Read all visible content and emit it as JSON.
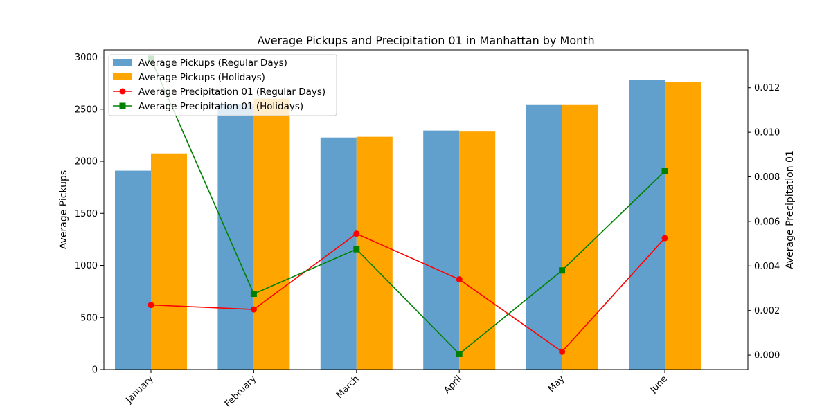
{
  "chart_data": {
    "type": "bar",
    "title": "Average Pickups and Precipitation 01 in Manhattan by Month",
    "xlabel": "",
    "ylabel": "Average Pickups",
    "y2label": "Average Precipitation 01",
    "categories": [
      "January",
      "February",
      "March",
      "April",
      "May",
      "June"
    ],
    "ylim": [
      0,
      3070
    ],
    "yticks": [
      0,
      500,
      1000,
      1500,
      2000,
      2500,
      3000
    ],
    "y2lim": [
      -0.00065,
      0.0137
    ],
    "y2ticks": [
      0.0,
      0.002,
      0.004,
      0.006,
      0.008,
      0.01,
      0.012
    ],
    "y2tick_labels": [
      "0.000",
      "0.002",
      "0.004",
      "0.006",
      "0.008",
      "0.010",
      "0.012"
    ],
    "legend_position": "top-left",
    "grid": false,
    "bar_series": [
      {
        "name": "Average Pickups (Regular Days)",
        "color": "#61a0cd",
        "values": [
          1910,
          2550,
          2228,
          2295,
          2540,
          2780
        ]
      },
      {
        "name": "Average Pickups (Holidays)",
        "color": "#ffa500",
        "values": [
          2075,
          2600,
          2235,
          2285,
          2540,
          2758
        ]
      }
    ],
    "line_series": [
      {
        "name": "Average Precipitation 01 (Regular Days)",
        "color": "#ff0000",
        "marker": "circle",
        "axis": "right",
        "values": [
          0.00225,
          0.00205,
          0.00545,
          0.0034,
          0.00015,
          0.00525
        ]
      },
      {
        "name": "Average Precipitation 01 (Holidays)",
        "color": "#008000",
        "marker": "square",
        "axis": "right",
        "values": [
          0.0133,
          0.00275,
          0.00475,
          5e-05,
          0.0038,
          0.00825
        ]
      }
    ]
  }
}
